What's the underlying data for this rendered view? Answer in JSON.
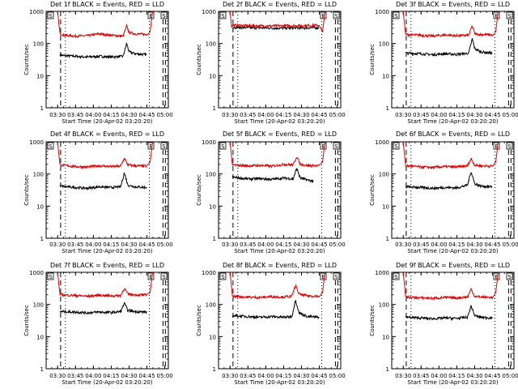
{
  "figure": {
    "ylabel": "Counts/sec",
    "xlabel": "Start Time (20-Apr-02 03:20:20)",
    "x_ticks": [
      "03:30",
      "03:45",
      "04:00",
      "04:15",
      "04:30",
      "04:45",
      "05:00"
    ],
    "y_ticks": [
      "1",
      "10",
      "100",
      "1000"
    ],
    "marker_labels": [
      "S",
      "E",
      "S"
    ],
    "colors": {
      "events": "#000000",
      "lld": "#e00000"
    }
  },
  "chart_data": [
    {
      "type": "line",
      "title": "Det 1f BLACK = Events, RED = LLD",
      "xlabel": "Start Time (20-Apr-02 03:20:20)",
      "ylabel": "Counts/sec",
      "yscale": "log",
      "ylim": [
        1,
        1000
      ],
      "xlim": [
        "03:20:20",
        "05:03:00"
      ],
      "x_ticks": [
        "03:30",
        "03:45",
        "04:00",
        "04:15",
        "04:30",
        "04:45",
        "05:00"
      ],
      "series": [
        {
          "name": "Events",
          "color": "#000000",
          "x": [
            "03:32",
            "03:35",
            "03:45",
            "03:55",
            "04:05",
            "04:15",
            "04:25",
            "04:28",
            "04:30",
            "04:35",
            "04:45"
          ],
          "y": [
            45,
            42,
            40,
            38,
            40,
            38,
            40,
            100,
            55,
            48,
            45
          ]
        },
        {
          "name": "LLD",
          "color": "#e00000",
          "x": [
            "03:32",
            "03:35",
            "03:45",
            "03:55",
            "04:05",
            "04:15",
            "04:25",
            "04:28",
            "04:30",
            "04:35",
            "04:45"
          ],
          "y": [
            210,
            180,
            170,
            175,
            200,
            180,
            170,
            350,
            220,
            200,
            190
          ]
        }
      ]
    },
    {
      "type": "line",
      "title": "Det 2f BLACK = Events, RED = LLD",
      "xlabel": "Start Time (20-Apr-02 03:20:20)",
      "ylabel": "Counts/sec",
      "yscale": "log",
      "ylim": [
        1,
        1000
      ],
      "xlim": [
        "03:20:20",
        "05:03:00"
      ],
      "x_ticks": [
        "03:30",
        "03:45",
        "04:00",
        "04:15",
        "04:30",
        "04:45",
        "05:00"
      ],
      "series": [
        {
          "name": "Events",
          "color": "#000000",
          "x": [
            "03:32",
            "03:45",
            "04:00",
            "04:15",
            "04:30",
            "04:45"
          ],
          "y": [
            320,
            310,
            305,
            300,
            305,
            310
          ]
        },
        {
          "name": "LLD",
          "color": "#e00000",
          "x": [
            "03:32",
            "03:45",
            "04:00",
            "04:15",
            "04:30",
            "04:45"
          ],
          "y": [
            370,
            360,
            350,
            355,
            360,
            370
          ]
        }
      ]
    },
    {
      "type": "line",
      "title": "Det 3f BLACK = Events, RED = LLD",
      "xlabel": "Start Time (20-Apr-02 03:20:20)",
      "ylabel": "Counts/sec",
      "yscale": "log",
      "ylim": [
        1,
        1000
      ],
      "xlim": [
        "03:20:20",
        "05:03:00"
      ],
      "x_ticks": [
        "03:30",
        "03:45",
        "04:00",
        "04:15",
        "04:30",
        "04:45",
        "05:00"
      ],
      "series": [
        {
          "name": "Events",
          "color": "#000000",
          "x": [
            "03:32",
            "03:45",
            "03:55",
            "04:05",
            "04:15",
            "04:25",
            "04:28",
            "04:30",
            "04:35",
            "04:45"
          ],
          "y": [
            50,
            48,
            45,
            48,
            46,
            50,
            140,
            70,
            55,
            50
          ]
        },
        {
          "name": "LLD",
          "color": "#e00000",
          "x": [
            "03:32",
            "03:45",
            "03:55",
            "04:05",
            "04:15",
            "04:25",
            "04:28",
            "04:30",
            "04:35",
            "04:45"
          ],
          "y": [
            190,
            180,
            170,
            185,
            175,
            180,
            360,
            200,
            190,
            185
          ]
        }
      ]
    },
    {
      "type": "line",
      "title": "Det 4f BLACK = Events, RED = LLD",
      "xlabel": "Start Time (20-Apr-02 03:20:20)",
      "ylabel": "Counts/sec",
      "yscale": "log",
      "ylim": [
        1,
        1000
      ],
      "xlim": [
        "03:20:20",
        "05:03:00"
      ],
      "x_ticks": [
        "03:30",
        "03:45",
        "04:00",
        "04:15",
        "04:30",
        "04:45",
        "05:00"
      ],
      "series": [
        {
          "name": "Events",
          "color": "#000000",
          "x": [
            "03:32",
            "03:45",
            "03:55",
            "04:05",
            "04:15",
            "04:23",
            "04:26",
            "04:29",
            "04:35",
            "04:45"
          ],
          "y": [
            42,
            38,
            36,
            40,
            38,
            40,
            110,
            45,
            40,
            38
          ]
        },
        {
          "name": "LLD",
          "color": "#e00000",
          "x": [
            "03:32",
            "03:45",
            "03:55",
            "04:05",
            "04:15",
            "04:23",
            "04:26",
            "04:29",
            "04:35",
            "04:45"
          ],
          "y": [
            190,
            170,
            165,
            180,
            170,
            175,
            310,
            190,
            180,
            175
          ]
        }
      ]
    },
    {
      "type": "line",
      "title": "Det 5f BLACK = Events, RED = LLD",
      "xlabel": "Start Time (20-Apr-02 03:20:20)",
      "ylabel": "Counts/sec",
      "yscale": "log",
      "ylim": [
        1,
        1000
      ],
      "xlim": [
        "03:20:20",
        "05:03:00"
      ],
      "x_ticks": [
        "03:30",
        "03:45",
        "04:00",
        "04:15",
        "04:30",
        "04:45",
        "05:00"
      ],
      "series": [
        {
          "name": "Events",
          "color": "#000000",
          "x": [
            "03:32",
            "03:45",
            "03:55",
            "04:05",
            "04:15",
            "04:23",
            "04:26",
            "04:29",
            "04:35",
            "04:40"
          ],
          "y": [
            80,
            70,
            72,
            68,
            75,
            70,
            150,
            75,
            65,
            60
          ]
        },
        {
          "name": "LLD",
          "color": "#e00000",
          "x": [
            "03:32",
            "03:45",
            "03:55",
            "04:05",
            "04:15",
            "04:23",
            "04:26",
            "04:29",
            "04:35",
            "04:45"
          ],
          "y": [
            190,
            180,
            185,
            175,
            200,
            190,
            350,
            200,
            185,
            180
          ]
        }
      ]
    },
    {
      "type": "line",
      "title": "Det 6f BLACK = Events, RED = LLD",
      "xlabel": "Start Time (20-Apr-02 03:20:20)",
      "ylabel": "Counts/sec",
      "yscale": "log",
      "ylim": [
        1,
        1000
      ],
      "xlim": [
        "03:20:20",
        "05:03:00"
      ],
      "x_ticks": [
        "03:30",
        "03:45",
        "04:00",
        "04:15",
        "04:30",
        "04:45",
        "05:00"
      ],
      "series": [
        {
          "name": "Events",
          "color": "#000000",
          "x": [
            "03:32",
            "03:45",
            "03:55",
            "04:05",
            "04:15",
            "04:24",
            "04:27",
            "04:30",
            "04:35",
            "04:45"
          ],
          "y": [
            40,
            38,
            36,
            38,
            37,
            45,
            120,
            50,
            42,
            40
          ]
        },
        {
          "name": "LLD",
          "color": "#e00000",
          "x": [
            "03:32",
            "03:45",
            "03:55",
            "04:05",
            "04:15",
            "04:24",
            "04:27",
            "04:30",
            "04:35",
            "04:45"
          ],
          "y": [
            180,
            165,
            160,
            170,
            165,
            180,
            300,
            190,
            180,
            175
          ]
        }
      ]
    },
    {
      "type": "line",
      "title": "Det 7f BLACK = Events, RED = LLD",
      "xlabel": "Start Time (20-Apr-02 03:20:20)",
      "ylabel": "Counts/sec",
      "yscale": "log",
      "ylim": [
        1,
        1000
      ],
      "xlim": [
        "03:20:20",
        "05:03:00"
      ],
      "x_ticks": [
        "03:30",
        "03:45",
        "04:00",
        "04:15",
        "04:30",
        "04:45",
        "05:00"
      ],
      "series": [
        {
          "name": "Events",
          "color": "#000000",
          "x": [
            "03:32",
            "03:45",
            "03:55",
            "04:05",
            "04:15",
            "04:23",
            "04:26",
            "04:29",
            "04:35",
            "04:45"
          ],
          "y": [
            60,
            58,
            55,
            58,
            56,
            60,
            110,
            65,
            60,
            58
          ]
        },
        {
          "name": "LLD",
          "color": "#e00000",
          "x": [
            "03:32",
            "03:45",
            "03:55",
            "04:05",
            "04:15",
            "04:23",
            "04:26",
            "04:29",
            "04:35",
            "04:45"
          ],
          "y": [
            200,
            190,
            180,
            195,
            185,
            190,
            320,
            210,
            200,
            195
          ]
        }
      ]
    },
    {
      "type": "line",
      "title": "Det 8f BLACK = Events, RED = LLD",
      "xlabel": "Start Time (20-Apr-02 03:20:20)",
      "ylabel": "Counts/sec",
      "yscale": "log",
      "ylim": [
        1,
        1000
      ],
      "xlim": [
        "03:20:20",
        "05:03:00"
      ],
      "x_ticks": [
        "03:30",
        "03:45",
        "04:00",
        "04:15",
        "04:30",
        "04:45",
        "05:00"
      ],
      "series": [
        {
          "name": "Events",
          "color": "#000000",
          "x": [
            "03:32",
            "03:45",
            "03:55",
            "04:05",
            "04:15",
            "04:22",
            "04:25",
            "04:28",
            "04:35",
            "04:45"
          ],
          "y": [
            45,
            42,
            40,
            42,
            40,
            42,
            140,
            55,
            42,
            40
          ]
        },
        {
          "name": "LLD",
          "color": "#e00000",
          "x": [
            "03:32",
            "03:45",
            "03:55",
            "04:05",
            "04:15",
            "04:22",
            "04:25",
            "04:28",
            "04:35",
            "04:45"
          ],
          "y": [
            180,
            170,
            165,
            175,
            170,
            180,
            400,
            210,
            185,
            180
          ]
        }
      ]
    },
    {
      "type": "line",
      "title": "Det 9f BLACK = Events, RED = LLD",
      "xlabel": "Start Time (20-Apr-02 03:20:20)",
      "ylabel": "Counts/sec",
      "yscale": "log",
      "ylim": [
        1,
        1000
      ],
      "xlim": [
        "03:20:20",
        "05:03:00"
      ],
      "x_ticks": [
        "03:30",
        "03:45",
        "04:00",
        "04:15",
        "04:30",
        "04:45",
        "05:00"
      ],
      "series": [
        {
          "name": "Events",
          "color": "#000000",
          "x": [
            "03:32",
            "03:45",
            "03:55",
            "04:05",
            "04:15",
            "04:24",
            "04:27",
            "04:30",
            "04:35",
            "04:45"
          ],
          "y": [
            40,
            38,
            36,
            38,
            37,
            40,
            90,
            45,
            40,
            38
          ]
        },
        {
          "name": "LLD",
          "color": "#e00000",
          "x": [
            "03:32",
            "03:45",
            "03:55",
            "04:05",
            "04:15",
            "04:24",
            "04:27",
            "04:30",
            "04:35",
            "04:45"
          ],
          "y": [
            170,
            160,
            155,
            165,
            160,
            170,
            300,
            180,
            170,
            165
          ]
        }
      ]
    }
  ]
}
